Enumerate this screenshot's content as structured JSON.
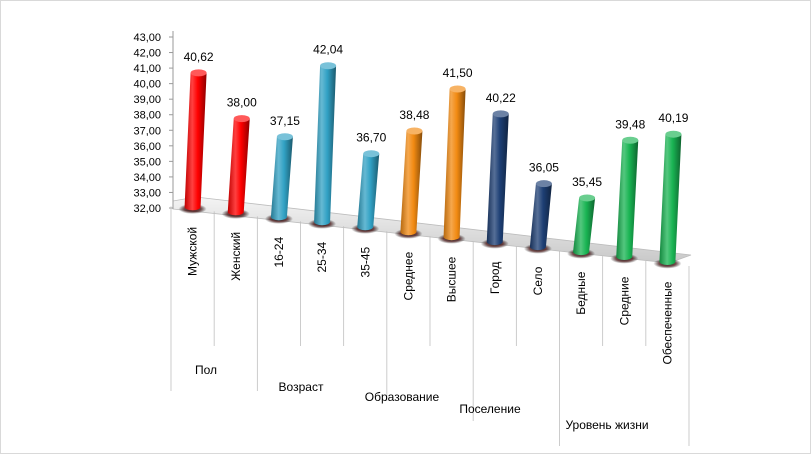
{
  "chart_data": {
    "type": "bar",
    "style": "3d-cylinder",
    "ylim": [
      32,
      43
    ],
    "yticks": [
      "32,00",
      "33,00",
      "34,00",
      "35,00",
      "36,00",
      "37,00",
      "38,00",
      "39,00",
      "40,00",
      "41,00",
      "42,00",
      "43,00"
    ],
    "categories": [
      "Мужской",
      "Женский",
      "16-24",
      "25-34",
      "35-45",
      "Среднее",
      "Высшее",
      "Город",
      "Село",
      "Бедные",
      "Средние",
      "Обеспеченные"
    ],
    "values": [
      40.62,
      38.0,
      37.15,
      42.04,
      36.7,
      38.48,
      41.5,
      40.22,
      36.05,
      35.45,
      39.48,
      40.19
    ],
    "value_labels": [
      "40,62",
      "38,00",
      "37,15",
      "42,04",
      "36,70",
      "38,48",
      "41,50",
      "40,22",
      "36,05",
      "35,45",
      "39,48",
      "40,19"
    ],
    "groups": [
      {
        "label": "Пол",
        "start": 0,
        "count": 2,
        "color": "#ff0000"
      },
      {
        "label": "Возраст",
        "start": 2,
        "count": 3,
        "color": "#31a1c4"
      },
      {
        "label": "Образование",
        "start": 5,
        "count": 2,
        "color": "#f28a12"
      },
      {
        "label": "Поселение",
        "start": 7,
        "count": 2,
        "color": "#1d3f74"
      },
      {
        "label": "Уровень жизни",
        "start": 9,
        "count": 3,
        "color": "#19b453"
      }
    ]
  }
}
